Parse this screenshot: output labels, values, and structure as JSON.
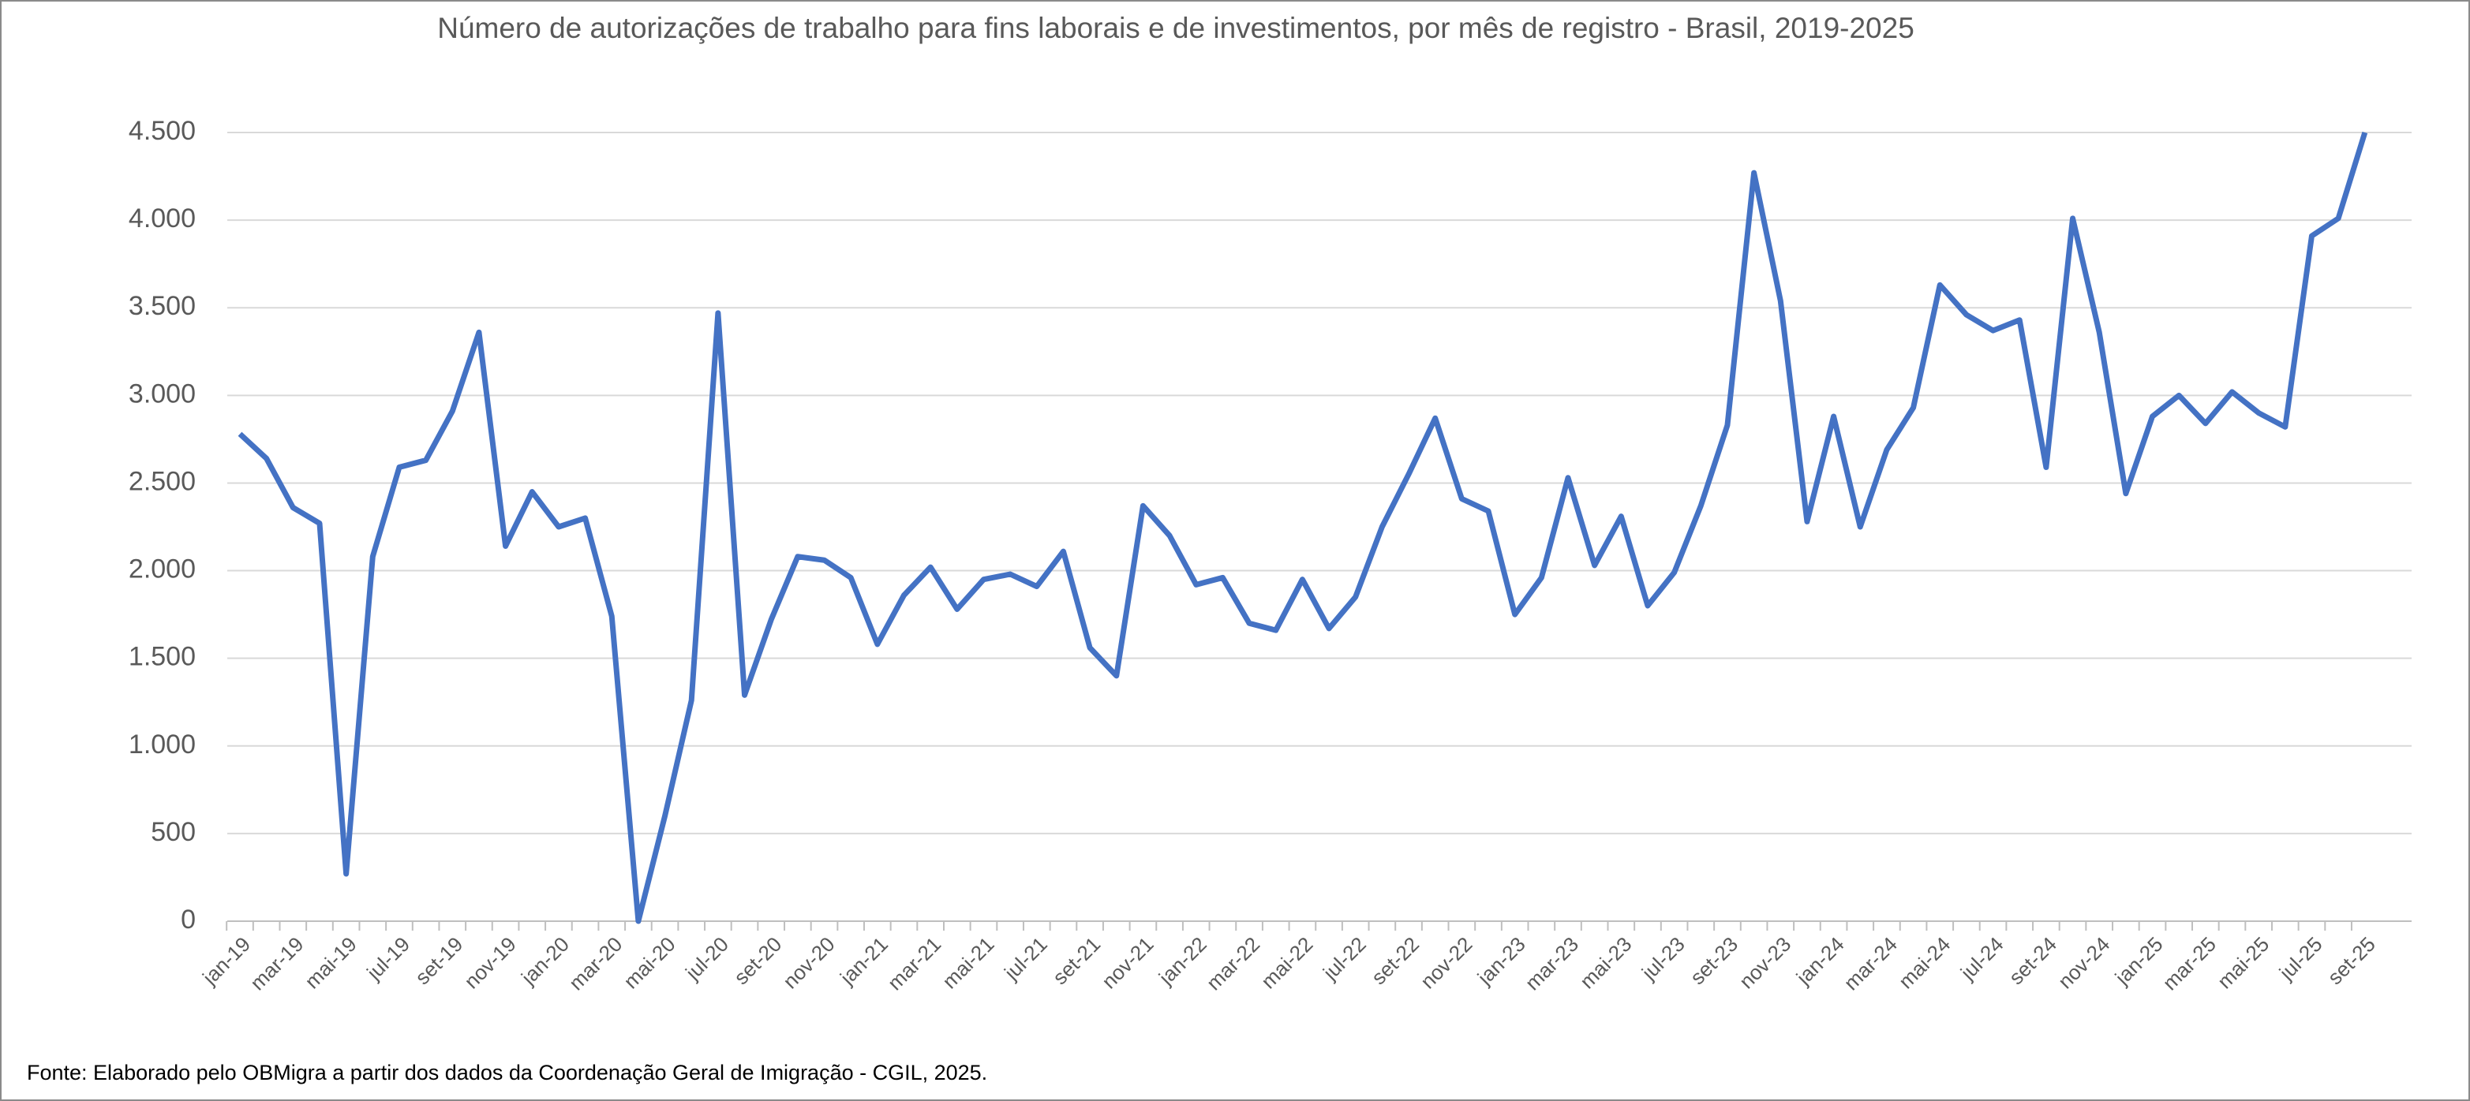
{
  "chart_data": {
    "type": "line",
    "title": "Número de autorizações de trabalho para fins laborais e de investimentos, por mês de registro - Brasil, 2019-2025",
    "source": "Fonte: Elaborado pelo OBMigra a partir dos dados da Coordenação Geral de Imigração - CGIL, 2025.",
    "categories": [
      "jan-19",
      null,
      "mar-19",
      null,
      "mai-19",
      null,
      "jul-19",
      null,
      "set-19",
      null,
      "nov-19",
      null,
      "jan-20",
      null,
      "mar-20",
      null,
      "mai-20",
      null,
      "jul-20",
      null,
      "set-20",
      null,
      "nov-20",
      null,
      "jan-21",
      null,
      "mar-21",
      null,
      "mai-21",
      null,
      "jul-21",
      null,
      "set-21",
      null,
      "nov-21",
      null,
      "jan-22",
      null,
      "mar-22",
      null,
      "mai-22",
      null,
      "jul-22",
      null,
      "set-22",
      null,
      "nov-22",
      null,
      "jan-23",
      null,
      "mar-23",
      null,
      "mai-23",
      null,
      "jul-23",
      null,
      "set-23",
      null,
      "nov-23",
      null,
      "jan-24",
      null,
      "mar-24",
      null,
      "mai-24",
      null,
      "jul-24",
      null,
      "set-24",
      null,
      "nov-24",
      null,
      "jan-25",
      null,
      "mar-25",
      null,
      "mai-25",
      null,
      "jul-25",
      null,
      "set-25"
    ],
    "series": [
      {
        "color": "#4472c4",
        "values": [
          2780,
          2640,
          2360,
          2270,
          270,
          2080,
          2590,
          2630,
          2910,
          3360,
          2140,
          2450,
          2250,
          2300,
          1740,
          0,
          600,
          1260,
          3470,
          1290,
          1720,
          2080,
          2060,
          1960,
          1580,
          1860,
          2020,
          1780,
          1950,
          1980,
          1910,
          2110,
          1560,
          1400,
          2370,
          2200,
          1920,
          1960,
          1700,
          1660,
          1950,
          1670,
          1850,
          2250,
          2550,
          2870,
          2410,
          2340,
          1750,
          1960,
          2530,
          2030,
          2310,
          1800,
          1990,
          2370,
          2830,
          4270,
          3540,
          2280,
          2880,
          2250,
          2690,
          2930,
          3630,
          3460,
          3370,
          3430,
          2590,
          4010,
          3360,
          2440,
          2880,
          3000,
          2840,
          3020,
          2900,
          2820,
          3910,
          4010,
          4500
        ]
      }
    ],
    "ylim": [
      0,
      4500
    ],
    "yticks": [
      0,
      500,
      {
        "value": 1000,
        "label": "1.000"
      },
      {
        "value": 1500,
        "label": "1.500"
      },
      {
        "value": 2000,
        "label": "2.000"
      },
      {
        "value": 2500,
        "label": "2.500"
      },
      {
        "value": 3000,
        "label": "3.000"
      },
      {
        "value": 3500,
        "label": "3.500"
      },
      {
        "value": 4000,
        "label": "4.000"
      },
      {
        "value": 4500,
        "label": "4.500"
      }
    ],
    "grid": true
  }
}
